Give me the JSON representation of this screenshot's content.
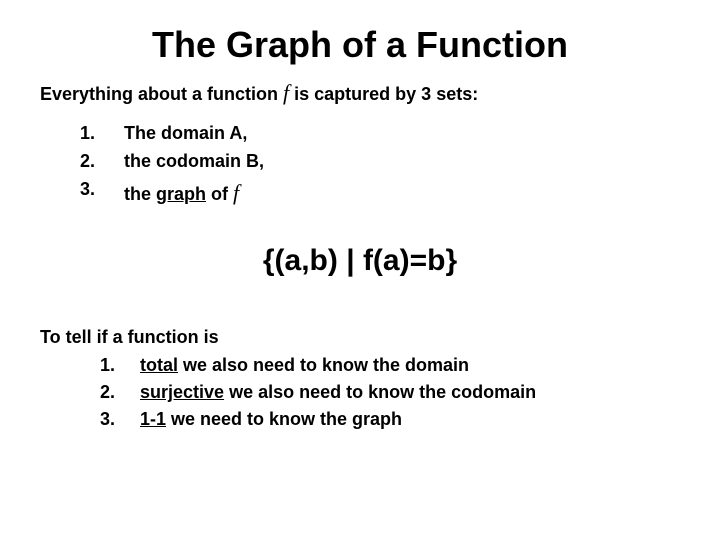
{
  "title": "The Graph of a Function",
  "intro_before": "Everything about a function ",
  "intro_f": "f",
  "intro_after": " is captured by 3 sets:",
  "top_list": [
    {
      "num": "1.",
      "text": "The domain A,"
    },
    {
      "num": "2.",
      "text": "the codomain B,"
    },
    {
      "num": "3.",
      "text_before": "the ",
      "underlined": "graph",
      "text_after": " of ",
      "math_f": "f"
    }
  ],
  "formula": "{(a,b) | f(a)=b}",
  "closing_lead": "To tell if a function is",
  "bottom_list": [
    {
      "num": "1.",
      "underlined": "total",
      "after": " we also need to know the domain"
    },
    {
      "num": "2.",
      "underlined": "surjective",
      "after": " we also need to know the codomain"
    },
    {
      "num": "3.",
      "underlined": "1-1",
      "after": " we need to know the graph"
    }
  ],
  "colors": {
    "bg": "#ffffff",
    "text": "#000000"
  }
}
